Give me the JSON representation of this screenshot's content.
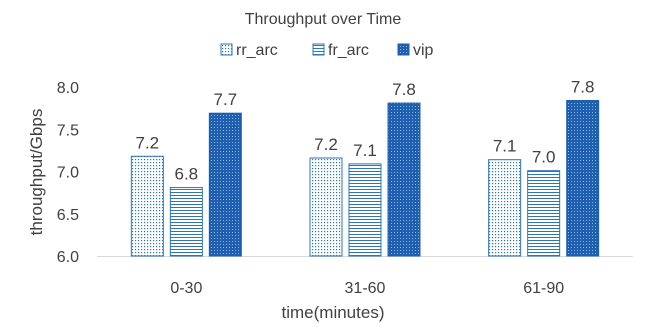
{
  "chart_data": {
    "type": "bar",
    "title": "Throughput over Time",
    "xlabel": "time(minutes)",
    "ylabel": "throughput/Gbps",
    "categories": [
      "0-30",
      "31-60",
      "61-90"
    ],
    "ylim": [
      6.0,
      8.0
    ],
    "yticks": [
      "6.0",
      "6.5",
      "7.0",
      "7.5",
      "8.0"
    ],
    "grid": false,
    "legend_position": "top",
    "series": [
      {
        "name": "rr_arc",
        "values": [
          7.18,
          7.16,
          7.14
        ],
        "labels": [
          "7.2",
          "7.2",
          "7.1"
        ],
        "pattern": "dots",
        "color": "#2E75B6"
      },
      {
        "name": "fr_arc",
        "values": [
          6.81,
          7.09,
          7.01
        ],
        "labels": [
          "6.8",
          "7.1",
          "7.0"
        ],
        "pattern": "hlines",
        "color": "#2E75B6"
      },
      {
        "name": "vip",
        "values": [
          7.69,
          7.81,
          7.84
        ],
        "labels": [
          "7.7",
          "7.8",
          "7.8"
        ],
        "pattern": "dense",
        "color": "#1F5FAF"
      }
    ]
  }
}
